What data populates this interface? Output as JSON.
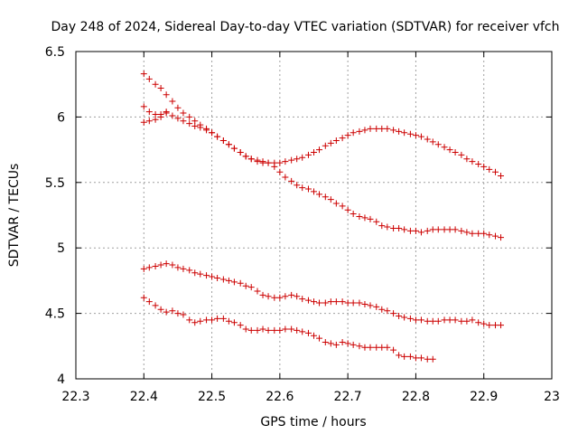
{
  "chart_data": {
    "type": "scatter",
    "title": "Day 248 of 2024, Sidereal Day-to-day VTEC variation (SDTVAR) for receiver vfch",
    "xlabel": "GPS time / hours",
    "ylabel": "SDTVAR / TECUs",
    "xlim": [
      22.3,
      23.0
    ],
    "ylim": [
      4.0,
      6.5
    ],
    "xticks": [
      22.3,
      22.4,
      22.5,
      22.6,
      22.7,
      22.8,
      22.9,
      23.0
    ],
    "xtick_labels": [
      "22.3",
      "22.4",
      "22.5",
      "22.6",
      "22.7",
      "22.8",
      "22.9",
      "23"
    ],
    "yticks": [
      4.0,
      4.5,
      5.0,
      5.5,
      6.0,
      6.5
    ],
    "ytick_labels": [
      "4",
      "4.5",
      "5",
      "5.5",
      "6",
      "6.5"
    ],
    "grid": true,
    "marker": "+",
    "marker_color": "#cc0000",
    "series": [
      {
        "name": "series-1",
        "x": [
          22.4,
          22.408,
          22.417,
          22.425,
          22.433,
          22.442,
          22.45,
          22.458,
          22.467,
          22.475,
          22.483,
          22.492,
          22.5,
          22.508,
          22.517,
          22.525,
          22.533,
          22.542,
          22.55,
          22.558,
          22.567,
          22.575,
          22.583,
          22.592,
          22.6,
          22.608,
          22.617,
          22.625,
          22.633,
          22.642,
          22.65,
          22.658,
          22.667,
          22.675,
          22.683,
          22.692,
          22.7,
          22.708,
          22.717,
          22.725,
          22.733,
          22.742,
          22.75,
          22.758,
          22.767,
          22.775,
          22.783,
          22.792,
          22.8,
          22.808,
          22.817,
          22.825,
          22.833,
          22.842,
          22.85,
          22.858,
          22.867,
          22.875,
          22.883,
          22.892,
          22.9,
          22.908,
          22.917,
          22.925
        ],
        "y": [
          6.33,
          6.29,
          6.25,
          6.22,
          6.17,
          6.12,
          6.07,
          6.03,
          6.0,
          5.97,
          5.94,
          5.91,
          5.88,
          5.85,
          5.82,
          5.79,
          5.76,
          5.73,
          5.7,
          5.68,
          5.66,
          5.65,
          5.65,
          5.65,
          5.65,
          5.66,
          5.67,
          5.68,
          5.69,
          5.71,
          5.73,
          5.75,
          5.78,
          5.8,
          5.82,
          5.84,
          5.86,
          5.88,
          5.89,
          5.9,
          5.91,
          5.91,
          5.91,
          5.91,
          5.9,
          5.89,
          5.88,
          5.87,
          5.86,
          5.85,
          5.83,
          5.81,
          5.79,
          5.77,
          5.75,
          5.73,
          5.71,
          5.68,
          5.66,
          5.64,
          5.62,
          5.6,
          5.58,
          5.55
        ]
      },
      {
        "name": "series-2",
        "x": [
          22.4,
          22.408,
          22.417,
          22.425,
          22.433,
          22.442,
          22.45,
          22.458,
          22.467,
          22.475,
          22.483,
          22.492,
          22.5,
          22.508,
          22.517,
          22.525,
          22.533,
          22.542,
          22.55,
          22.558,
          22.567,
          22.575,
          22.583,
          22.592,
          22.6,
          22.608,
          22.617,
          22.625,
          22.633,
          22.642,
          22.65,
          22.658,
          22.667,
          22.675,
          22.683,
          22.692,
          22.7,
          22.708,
          22.717,
          22.725,
          22.733,
          22.742,
          22.75,
          22.758,
          22.767,
          22.775,
          22.783,
          22.792,
          22.8,
          22.808,
          22.817,
          22.825,
          22.833,
          22.842,
          22.85,
          22.858,
          22.867,
          22.875,
          22.883,
          22.892,
          22.9,
          22.908,
          22.917,
          22.925
        ],
        "y": [
          6.08,
          6.04,
          6.02,
          6.02,
          6.03,
          6.01,
          5.99,
          5.97,
          5.95,
          5.93,
          5.92,
          5.9,
          5.88,
          5.85,
          5.82,
          5.79,
          5.76,
          5.73,
          5.7,
          5.68,
          5.67,
          5.66,
          5.65,
          5.62,
          5.58,
          5.54,
          5.51,
          5.48,
          5.46,
          5.45,
          5.43,
          5.41,
          5.39,
          5.37,
          5.34,
          5.32,
          5.29,
          5.26,
          5.24,
          5.23,
          5.22,
          5.2,
          5.17,
          5.16,
          5.15,
          5.15,
          5.14,
          5.13,
          5.13,
          5.12,
          5.13,
          5.14,
          5.14,
          5.14,
          5.14,
          5.14,
          5.13,
          5.12,
          5.11,
          5.11,
          5.11,
          5.1,
          5.09,
          5.08
        ]
      },
      {
        "name": "series-3",
        "x": [
          22.4,
          22.408,
          22.417,
          22.425,
          22.433
        ],
        "y": [
          5.96,
          5.97,
          5.98,
          6.0,
          6.04
        ]
      },
      {
        "name": "series-4",
        "x": [
          22.4,
          22.408,
          22.417,
          22.425,
          22.433,
          22.442,
          22.45,
          22.458,
          22.467,
          22.475,
          22.483,
          22.492,
          22.5,
          22.508,
          22.517,
          22.525,
          22.533,
          22.542,
          22.55,
          22.558,
          22.567,
          22.575,
          22.583,
          22.592,
          22.6,
          22.608,
          22.617,
          22.625,
          22.633,
          22.642,
          22.65,
          22.658,
          22.667,
          22.675,
          22.683,
          22.692,
          22.7,
          22.708,
          22.717,
          22.725,
          22.733,
          22.742,
          22.75,
          22.758,
          22.767,
          22.775,
          22.783,
          22.792,
          22.8,
          22.808,
          22.817,
          22.825,
          22.833,
          22.842,
          22.85,
          22.858,
          22.867,
          22.875,
          22.883,
          22.892,
          22.9,
          22.908,
          22.917,
          22.925
        ],
        "y": [
          4.84,
          4.85,
          4.86,
          4.87,
          4.88,
          4.87,
          4.85,
          4.84,
          4.83,
          4.81,
          4.8,
          4.79,
          4.78,
          4.77,
          4.76,
          4.75,
          4.74,
          4.73,
          4.71,
          4.7,
          4.67,
          4.64,
          4.63,
          4.62,
          4.62,
          4.63,
          4.64,
          4.63,
          4.61,
          4.6,
          4.59,
          4.58,
          4.58,
          4.59,
          4.59,
          4.59,
          4.58,
          4.58,
          4.58,
          4.57,
          4.56,
          4.55,
          4.53,
          4.52,
          4.5,
          4.48,
          4.47,
          4.46,
          4.45,
          4.45,
          4.44,
          4.44,
          4.44,
          4.45,
          4.45,
          4.45,
          4.44,
          4.44,
          4.45,
          4.43,
          4.42,
          4.41,
          4.41,
          4.41
        ]
      },
      {
        "name": "series-5",
        "x": [
          22.4,
          22.408,
          22.417,
          22.425,
          22.433,
          22.442,
          22.45,
          22.458,
          22.467,
          22.475,
          22.483,
          22.492,
          22.5,
          22.508,
          22.517,
          22.525,
          22.533,
          22.542,
          22.55,
          22.558,
          22.567,
          22.575,
          22.583,
          22.592,
          22.6,
          22.608,
          22.617,
          22.625,
          22.633,
          22.642,
          22.65,
          22.658,
          22.667,
          22.675,
          22.683,
          22.692,
          22.7,
          22.708,
          22.717,
          22.725,
          22.733,
          22.742,
          22.75,
          22.758,
          22.767,
          22.775,
          22.783,
          22.792,
          22.8,
          22.808,
          22.817,
          22.825
        ],
        "y": [
          4.62,
          4.59,
          4.56,
          4.53,
          4.51,
          4.52,
          4.5,
          4.49,
          4.45,
          4.43,
          4.44,
          4.45,
          4.45,
          4.46,
          4.46,
          4.44,
          4.43,
          4.41,
          4.38,
          4.37,
          4.37,
          4.38,
          4.37,
          4.37,
          4.37,
          4.38,
          4.38,
          4.37,
          4.36,
          4.35,
          4.33,
          4.31,
          4.28,
          4.27,
          4.26,
          4.28,
          4.27,
          4.26,
          4.25,
          4.24,
          4.24,
          4.24,
          4.24,
          4.24,
          4.22,
          4.18,
          4.17,
          4.17,
          4.16,
          4.16,
          4.15,
          4.15
        ]
      }
    ]
  }
}
